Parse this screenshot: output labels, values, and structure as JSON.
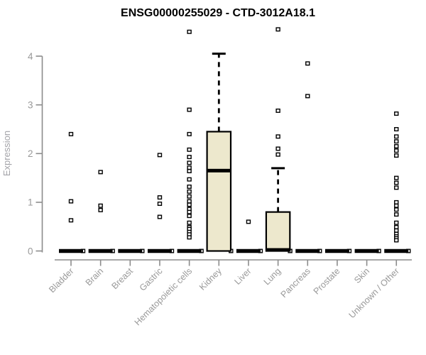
{
  "chart_data": {
    "type": "boxplot",
    "title": "ENSG00000255029 - CTD-3012A18.1",
    "ylabel": "Expression",
    "xlabel": "",
    "ylim": [
      0,
      4.6
    ],
    "yticks": [
      0,
      1,
      2,
      3,
      4
    ],
    "grid": false,
    "legend": "none",
    "colors": {
      "box_fill": "#ede8cd",
      "box_border": "#000000",
      "median": "#000000",
      "whisker": "#000000",
      "outlier_stroke": "#000000",
      "outlier_fill": "#ffffff",
      "axis": "#8c8c8c",
      "tick_label": "#999999",
      "title": "#000000"
    },
    "categories": [
      "Bladder",
      "Brain",
      "Breast",
      "Gastric",
      "Hematopoietic cells",
      "Kidney",
      "Liver",
      "Lung",
      "Pancreas",
      "Prostate",
      "Skin",
      "Unknown / Other"
    ],
    "boxes": [
      {
        "label": "Bladder",
        "q1": 0,
        "median": 0,
        "q3": 0,
        "whisker_low": 0,
        "whisker_high": 0,
        "outliers": [
          2.4,
          1.02,
          0.63
        ]
      },
      {
        "label": "Brain",
        "q1": 0,
        "median": 0,
        "q3": 0,
        "whisker_low": 0,
        "whisker_high": 0,
        "outliers": [
          1.62,
          0.93,
          0.84
        ]
      },
      {
        "label": "Breast",
        "q1": 0,
        "median": 0,
        "q3": 0,
        "whisker_low": 0,
        "whisker_high": 0,
        "outliers": []
      },
      {
        "label": "Gastric",
        "q1": 0,
        "median": 0,
        "q3": 0,
        "whisker_low": 0,
        "whisker_high": 0,
        "outliers": [
          1.97,
          1.1,
          0.97,
          0.7
        ]
      },
      {
        "label": "Hematopoietic cells",
        "q1": 0,
        "median": 0,
        "q3": 0,
        "whisker_low": 0,
        "whisker_high": 0,
        "outliers": [
          4.5,
          2.9,
          2.4,
          2.08,
          1.93,
          1.81,
          1.71,
          1.64,
          1.47,
          1.32,
          1.22,
          1.12,
          1.02,
          0.95,
          0.86,
          0.8,
          0.72,
          0.58,
          0.49,
          0.45,
          0.39,
          0.34,
          0.28
        ]
      },
      {
        "label": "Kidney",
        "q1": 0,
        "median": 1.65,
        "q3": 2.45,
        "whisker_low": 0,
        "whisker_high": 4.05,
        "outliers": []
      },
      {
        "label": "Liver",
        "q1": 0,
        "median": 0,
        "q3": 0,
        "whisker_low": 0,
        "whisker_high": 0,
        "outliers": [
          0.6
        ]
      },
      {
        "label": "Lung",
        "q1": 0,
        "median": 0,
        "q3": 0.8,
        "whisker_low": 0,
        "whisker_high": 1.7,
        "outliers": [
          4.55,
          2.88,
          2.35,
          2.1,
          1.98
        ]
      },
      {
        "label": "Pancreas",
        "q1": 0,
        "median": 0,
        "q3": 0,
        "whisker_low": 0,
        "whisker_high": 0,
        "outliers": [
          3.85,
          3.18
        ]
      },
      {
        "label": "Prostate",
        "q1": 0,
        "median": 0,
        "q3": 0,
        "whisker_low": 0,
        "whisker_high": 0,
        "outliers": []
      },
      {
        "label": "Skin",
        "q1": 0,
        "median": 0,
        "q3": 0,
        "whisker_low": 0,
        "whisker_high": 0,
        "outliers": []
      },
      {
        "label": "Unknown / Other",
        "q1": 0,
        "median": 0,
        "q3": 0,
        "whisker_low": 0,
        "whisker_high": 0,
        "outliers": [
          2.82,
          2.5,
          2.35,
          2.25,
          2.15,
          2.06,
          1.96,
          1.5,
          1.4,
          1.3,
          1.0,
          0.93,
          0.85,
          0.75,
          0.58,
          0.49,
          0.42,
          0.35,
          0.3,
          0.26,
          0.22
        ]
      }
    ]
  }
}
